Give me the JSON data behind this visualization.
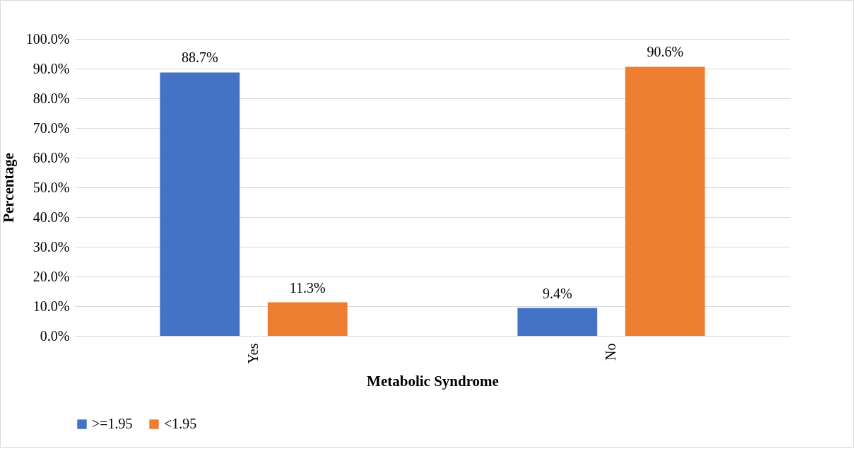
{
  "chart_data": {
    "type": "bar",
    "xlabel": "Metabolic Syndrome",
    "ylabel": "Percentage",
    "categories": [
      "Yes",
      "No"
    ],
    "series": [
      {
        "name": ">=1.95",
        "color": "#4472c4",
        "values": [
          88.7,
          9.4
        ],
        "value_labels": [
          "88.7%",
          "9.4%"
        ]
      },
      {
        "name": "<1.95",
        "color": "#ed7d31",
        "values": [
          11.3,
          90.6
        ],
        "value_labels": [
          "11.3%",
          "90.6%"
        ]
      }
    ],
    "ylim": [
      0,
      100
    ],
    "yticks": [
      {
        "value": 0,
        "label": "0.0%"
      },
      {
        "value": 10,
        "label": "10.0%"
      },
      {
        "value": 20,
        "label": "20.0%"
      },
      {
        "value": 30,
        "label": "30.0%"
      },
      {
        "value": 40,
        "label": "40.0%"
      },
      {
        "value": 50,
        "label": "50.0%"
      },
      {
        "value": 60,
        "label": "60.0%"
      },
      {
        "value": 70,
        "label": "70.0%"
      },
      {
        "value": 80,
        "label": "80.0%"
      },
      {
        "value": 90,
        "label": "90.0%"
      },
      {
        "value": 100,
        "label": "100.0%"
      }
    ],
    "grid": "y",
    "legend": "bottom"
  }
}
